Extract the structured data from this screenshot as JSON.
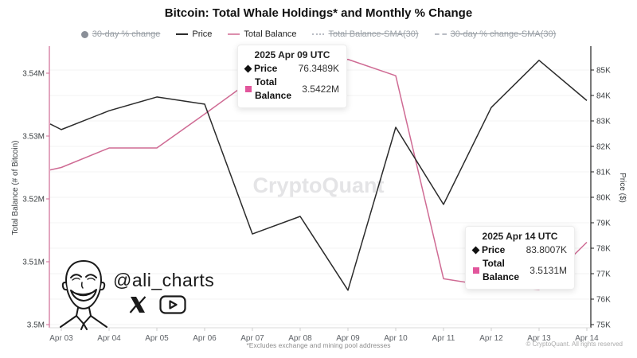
{
  "header": {
    "title": "Bitcoin: Total Whale Holdings* and Monthly % Change"
  },
  "legend": {
    "items": [
      {
        "label": "30-day % change",
        "marker": "circle",
        "enabled": false
      },
      {
        "label": "Price",
        "marker": "line",
        "color": "#2b2b2b",
        "enabled": true
      },
      {
        "label": "Total Balance",
        "marker": "line",
        "color": "#dc8fad",
        "enabled": true
      },
      {
        "label": "Total Balance-SMA(30)",
        "marker": "dotted",
        "enabled": false
      },
      {
        "label": "30-day % change-SMA(30)",
        "marker": "dashed",
        "enabled": false
      }
    ]
  },
  "chart_data": {
    "type": "line",
    "x": [
      "Apr 03",
      "Apr 04",
      "Apr 05",
      "Apr 06",
      "Apr 07",
      "Apr 08",
      "Apr 09",
      "Apr 10",
      "Apr 11",
      "Apr 12",
      "Apr 13",
      "Apr 14"
    ],
    "series": [
      {
        "name": "Price",
        "axis": "right",
        "color": "#2b2b2b",
        "unit": "K",
        "left_edge_value": 82.88,
        "values": [
          82.66,
          83.4,
          83.94,
          83.66,
          78.56,
          79.25,
          76.3489,
          82.75,
          79.72,
          83.53,
          85.38,
          83.8007
        ]
      },
      {
        "name": "Total Balance",
        "axis": "left",
        "color": "#cf6b94",
        "unit": "M",
        "left_edge_value": 3.5246,
        "values": [
          3.525,
          3.5281,
          3.5281,
          3.5335,
          3.539,
          3.541,
          3.5422,
          3.5396,
          3.5073,
          3.5061,
          3.5056,
          3.5131
        ]
      }
    ],
    "left_axis": {
      "label": "Total Balance (# of Bitcoin)",
      "ticks": [
        "3.5M",
        "3.51M",
        "3.52M",
        "3.53M",
        "3.54M"
      ],
      "tick_values": [
        3.5,
        3.51,
        3.52,
        3.53,
        3.54
      ],
      "range": [
        3.5,
        3.54
      ],
      "color": "#cf6b94"
    },
    "right_axis": {
      "label": "Price ($)",
      "ticks": [
        "75K",
        "76K",
        "77K",
        "78K",
        "79K",
        "80K",
        "81K",
        "82K",
        "83K",
        "84K",
        "85K"
      ],
      "tick_values": [
        75,
        76,
        77,
        78,
        79,
        80,
        81,
        82,
        83,
        84,
        85
      ],
      "range": [
        75,
        85
      ],
      "color": "#1f1f1f"
    },
    "grid": "horizontal-faint",
    "watermark": "CryptoQuant"
  },
  "tooltips": [
    {
      "title": "2025 Apr 09 UTC",
      "rows": [
        {
          "marker": "diamond",
          "label": "Price",
          "value": "76.3489K"
        },
        {
          "marker": "square",
          "label": "Total Balance",
          "value": "3.5422M"
        }
      ]
    },
    {
      "title": "2025 Apr 14 UTC",
      "rows": [
        {
          "marker": "diamond",
          "label": "Price",
          "value": "83.8007K"
        },
        {
          "marker": "square",
          "label": "Total Balance",
          "value": "3.5131M"
        }
      ]
    }
  ],
  "branding": {
    "handle": "@ali_charts",
    "icons": [
      "x-logo",
      "youtube"
    ]
  },
  "footer": {
    "note": "*Excludes exchange and mining pool addresses",
    "copyright": "© CryptoQuant. All rights reserved"
  }
}
